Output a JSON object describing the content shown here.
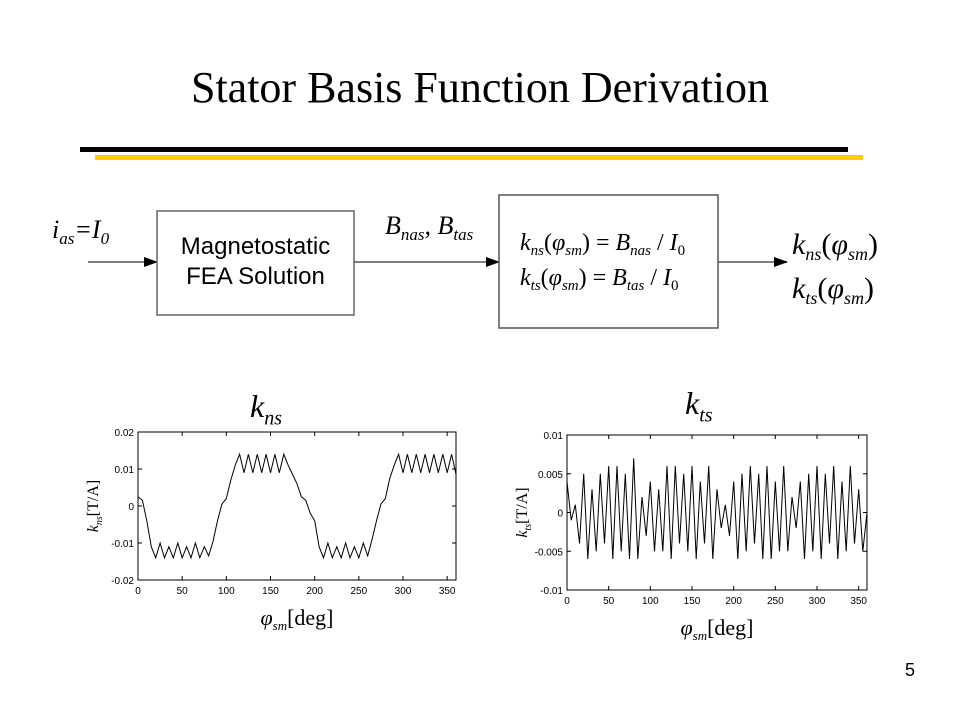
{
  "slide": {
    "title": "Stator Basis Function Derivation",
    "page_number": "5"
  },
  "flow": {
    "input": {
      "i_main": "i",
      "i_sub": "as",
      "eq_main": "=I",
      "eq_sub": "0"
    },
    "fea_box": {
      "line1": "Magnetostatic",
      "line2": "FEA Solution"
    },
    "mid": {
      "b1": "B",
      "b1_sub": "nas",
      "sep": ", ",
      "b2": "B",
      "b2_sub": "tas"
    },
    "eq_box": {
      "eq1": {
        "k": "k",
        "k_sub": "ns",
        "phi": "φ",
        "phi_sub": "sm",
        "rhs_b": "B",
        "rhs_sub": "nas",
        "rhs_i": "I",
        "rhs_i_sub": "0"
      },
      "eq2": {
        "k": "k",
        "k_sub": "ts",
        "phi": "φ",
        "phi_sub": "sm",
        "rhs_b": "B",
        "rhs_sub": "tas",
        "rhs_i": "I",
        "rhs_i_sub": "0"
      }
    },
    "output": {
      "o1": {
        "k": "k",
        "k_sub": "ns",
        "phi": "φ",
        "phi_sub": "sm"
      },
      "o2": {
        "k": "k",
        "k_sub": "ts",
        "phi": "φ",
        "phi_sub": "sm"
      }
    }
  },
  "chart_data": [
    {
      "type": "line",
      "title_main": "k",
      "title_sub": "ns",
      "xlabel_phi": "φ",
      "xlabel_sub": "sm",
      "xlabel_unit": "[deg]",
      "ylabel_k": "k",
      "ylabel_sub": "ns",
      "ylabel_unit": "[T/A]",
      "xlim": [
        0,
        360
      ],
      "ylim": [
        -0.02,
        0.02
      ],
      "xticks": [
        "0",
        "50",
        "100",
        "150",
        "200",
        "250",
        "300",
        "350"
      ],
      "yticks": [
        "0.02",
        "0.01",
        "0",
        "-0.01",
        "-0.02"
      ],
      "ytick_values": [
        0.02,
        0.01,
        0,
        -0.01,
        -0.02
      ],
      "xtick_values": [
        0,
        50,
        100,
        150,
        200,
        250,
        300,
        350
      ],
      "x": [
        0,
        5,
        10,
        15,
        20,
        25,
        30,
        35,
        40,
        45,
        50,
        55,
        60,
        65,
        70,
        75,
        80,
        85,
        90,
        95,
        100,
        105,
        110,
        115,
        120,
        125,
        130,
        135,
        140,
        145,
        150,
        155,
        160,
        165,
        170,
        175,
        180,
        185,
        190,
        195,
        200,
        205,
        210,
        215,
        220,
        225,
        230,
        235,
        240,
        245,
        250,
        255,
        260,
        265,
        270,
        275,
        280,
        285,
        290,
        295,
        300,
        305,
        310,
        315,
        320,
        325,
        330,
        335,
        340,
        345,
        350,
        355,
        360
      ],
      "y": [
        0.0025,
        0.0015,
        -0.004,
        -0.011,
        -0.014,
        -0.01,
        -0.014,
        -0.011,
        -0.014,
        -0.01,
        -0.014,
        -0.011,
        -0.014,
        -0.01,
        -0.014,
        -0.011,
        -0.0135,
        -0.0095,
        -0.004,
        0.0005,
        0.002,
        0.007,
        0.011,
        0.014,
        0.009,
        0.014,
        0.009,
        0.014,
        0.009,
        0.014,
        0.009,
        0.014,
        0.009,
        0.014,
        0.011,
        0.0085,
        0.006,
        0.0025,
        0.0015,
        -0.002,
        -0.004,
        -0.011,
        -0.014,
        -0.01,
        -0.014,
        -0.011,
        -0.014,
        -0.01,
        -0.014,
        -0.011,
        -0.014,
        -0.01,
        -0.0135,
        -0.009,
        -0.004,
        0.0005,
        0.002,
        0.0075,
        0.011,
        0.014,
        0.009,
        0.014,
        0.009,
        0.014,
        0.009,
        0.014,
        0.009,
        0.014,
        0.009,
        0.014,
        0.009,
        0.014,
        0.0085
      ]
    },
    {
      "type": "line",
      "title_main": "k",
      "title_sub": "ts",
      "xlabel_phi": "φ",
      "xlabel_sub": "sm",
      "xlabel_unit": "[deg]",
      "ylabel_k": "k",
      "ylabel_sub": "ts",
      "ylabel_unit": "[T/A]",
      "xlim": [
        0,
        360
      ],
      "ylim": [
        -0.01,
        0.01
      ],
      "xticks": [
        "0",
        "50",
        "100",
        "150",
        "200",
        "250",
        "300",
        "350"
      ],
      "yticks": [
        "0.01",
        "0.005",
        "0",
        "-0.005",
        "-0.01"
      ],
      "ytick_values": [
        0.01,
        0.005,
        0,
        -0.005,
        -0.01
      ],
      "xtick_values": [
        0,
        50,
        100,
        150,
        200,
        250,
        300,
        350
      ],
      "x": [
        0,
        5,
        10,
        15,
        20,
        25,
        30,
        35,
        40,
        45,
        50,
        55,
        60,
        65,
        70,
        75,
        80,
        85,
        90,
        95,
        100,
        105,
        110,
        115,
        120,
        125,
        130,
        135,
        140,
        145,
        150,
        155,
        160,
        165,
        170,
        175,
        180,
        185,
        190,
        195,
        200,
        205,
        210,
        215,
        220,
        225,
        230,
        235,
        240,
        245,
        250,
        255,
        260,
        265,
        270,
        275,
        280,
        285,
        290,
        295,
        300,
        305,
        310,
        315,
        320,
        325,
        330,
        335,
        340,
        345,
        350,
        355,
        360
      ],
      "y": [
        0.004,
        -0.001,
        0.001,
        -0.004,
        0.005,
        -0.006,
        0.003,
        -0.005,
        0.005,
        -0.004,
        0.006,
        -0.006,
        0.006,
        -0.005,
        0.005,
        -0.006,
        0.007,
        -0.006,
        0.002,
        -0.003,
        0.004,
        -0.005,
        0.003,
        -0.005,
        0.006,
        -0.006,
        0.006,
        -0.004,
        0.005,
        -0.005,
        0.006,
        -0.006,
        0.004,
        -0.004,
        0.006,
        -0.006,
        0.003,
        -0.002,
        0.001,
        -0.003,
        0.004,
        -0.006,
        0.005,
        -0.005,
        0.006,
        -0.004,
        0.005,
        -0.006,
        0.006,
        -0.006,
        0.004,
        -0.005,
        0.006,
        -0.005,
        0.002,
        -0.002,
        0.004,
        -0.006,
        0.005,
        -0.005,
        0.006,
        -0.006,
        0.005,
        -0.004,
        0.006,
        -0.006,
        0.004,
        -0.005,
        0.006,
        -0.004,
        0.003,
        -0.005,
        0.0
      ]
    }
  ]
}
